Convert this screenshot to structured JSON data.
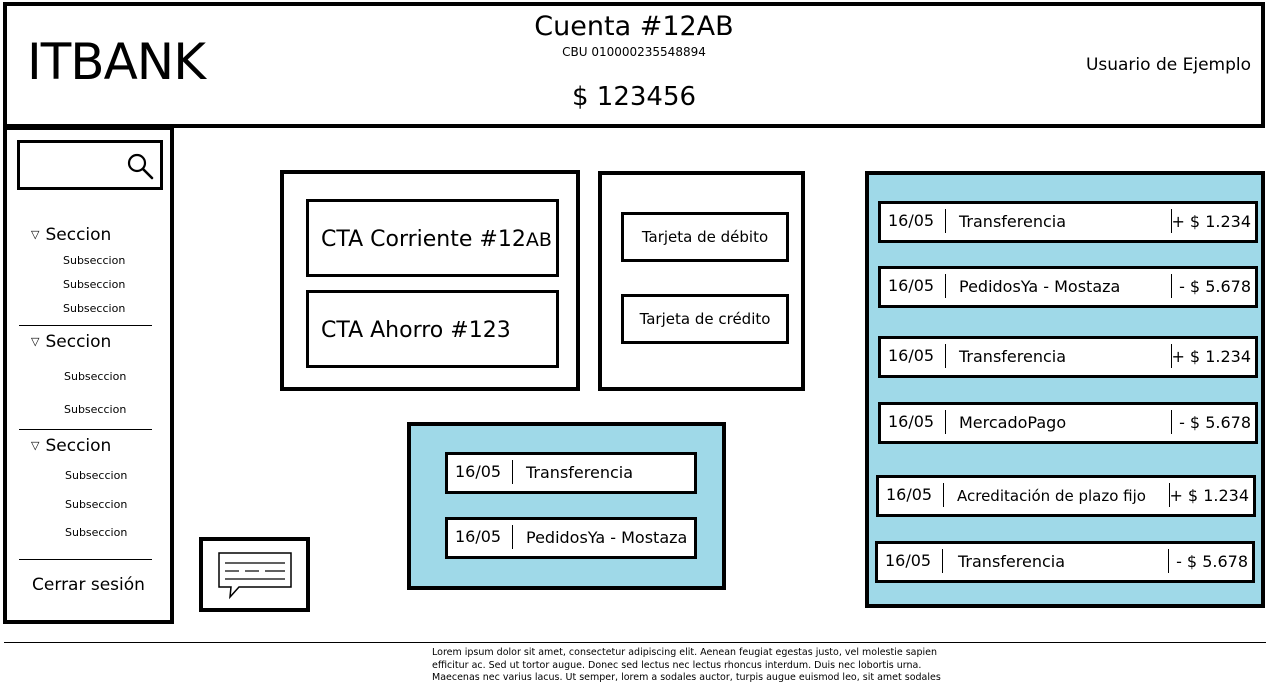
{
  "header": {
    "logo": "ITBANK",
    "account_title": "Cuenta #12AB",
    "cbu": "CBU 010000235548894",
    "balance": "$ 123456",
    "user_name": "Usuario de Ejemplo"
  },
  "search": {
    "placeholder": "",
    "icon": "search-icon"
  },
  "sidebar": {
    "sections": [
      {
        "title": "Seccion",
        "subsections": [
          "Subseccion",
          "Subseccion",
          "Subseccion"
        ]
      },
      {
        "title": "Seccion",
        "subsections": [
          "Subseccion",
          "Subseccion"
        ]
      },
      {
        "title": "Seccion",
        "subsections": [
          "Subseccion",
          "Subseccion",
          "Subseccion"
        ]
      }
    ],
    "logout": "Cerrar sesión"
  },
  "accounts": {
    "current": "CTA Corriente #12",
    "current_suffix": "AB",
    "savings": "CTA Ahorro #123"
  },
  "cards": {
    "debit": "Tarjeta de débito",
    "credit": "Tarjeta de crédito"
  },
  "recent_transactions": [
    {
      "date": "16/05",
      "description": "Transferencia"
    },
    {
      "date": "16/05",
      "description": "PedidosYa - Mostaza"
    }
  ],
  "transactions": [
    {
      "date": "16/05",
      "description": "Transferencia",
      "amount": "+ $ 1.234"
    },
    {
      "date": "16/05",
      "description": "PedidosYa - Mostaza",
      "amount": "- $ 5.678"
    },
    {
      "date": "16/05",
      "description": "Transferencia",
      "amount": "+ $ 1.234"
    },
    {
      "date": "16/05",
      "description": "MercadoPago",
      "amount": "- $ 5.678"
    },
    {
      "date": "16/05",
      "description": "Acreditación de plazo fijo",
      "amount": "+ $ 1.234"
    },
    {
      "date": "16/05",
      "description": "Transferencia",
      "amount": "- $ 5.678"
    }
  ],
  "footer": {
    "text": "Lorem ipsum dolor sit amet, consectetur adipiscing elit. Aenean feugiat egestas justo, vel molestie sapien efficitur ac. Sed ut tortor augue. Donec sed lectus nec lectus rhoncus interdum. Duis nec lobortis urna. Maecenas nec varius lacus. Ut semper, lorem a sodales auctor, turpis augue euismod leo, sit amet sodales"
  },
  "colors": {
    "panel_blue": "#9fd9e8",
    "border": "#000000"
  }
}
